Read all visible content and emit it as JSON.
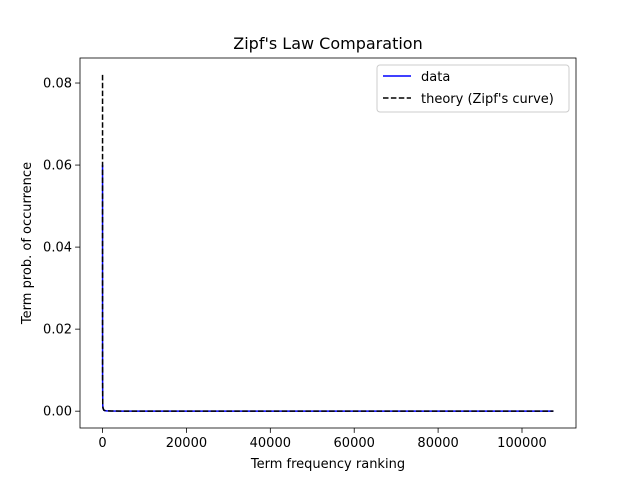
{
  "chart_data": {
    "type": "line",
    "title": "Zipf's Law Comparation",
    "xlabel": "Term frequency ranking",
    "ylabel": "Term prob. of occurrence",
    "xlim": [
      -5375,
      112875
    ],
    "ylim": [
      -0.0041,
      0.0861
    ],
    "xticks": [
      0,
      20000,
      40000,
      60000,
      80000,
      100000
    ],
    "yticks": [
      0.0,
      0.02,
      0.04,
      0.06,
      0.08
    ],
    "xtick_labels": [
      "0",
      "20000",
      "40000",
      "60000",
      "80000",
      "100000"
    ],
    "ytick_labels": [
      "0.00",
      "0.02",
      "0.04",
      "0.06",
      "0.08"
    ],
    "grid": false,
    "legend_position": "top-right",
    "series": [
      {
        "name": "data",
        "color": "#0000ff",
        "style": "solid",
        "x": [
          1,
          2,
          5,
          10,
          50,
          100,
          300,
          500,
          1000,
          2000,
          5000,
          10000,
          20000,
          40000,
          60000,
          80000,
          107500
        ],
        "y": [
          0.06,
          0.035,
          0.015,
          0.0075,
          0.0015,
          0.00075,
          0.00025,
          0.00015,
          8e-05,
          4e-05,
          1.5e-05,
          8e-06,
          4e-06,
          2e-06,
          1.3e-06,
          1e-06,
          7e-07
        ]
      },
      {
        "name": "theory (Zipf's curve)",
        "color": "#000000",
        "style": "dashed",
        "x": [
          1,
          2,
          5,
          10,
          50,
          100,
          300,
          500,
          1000,
          2000,
          5000,
          10000,
          20000,
          40000,
          60000,
          80000,
          107500
        ],
        "y": [
          0.082,
          0.041,
          0.0164,
          0.0082,
          0.00164,
          0.00082,
          0.00027,
          0.000164,
          8.2e-05,
          4.1e-05,
          1.64e-05,
          8.2e-06,
          4.1e-06,
          2e-06,
          1.4e-06,
          1e-06,
          8e-07
        ]
      }
    ]
  }
}
